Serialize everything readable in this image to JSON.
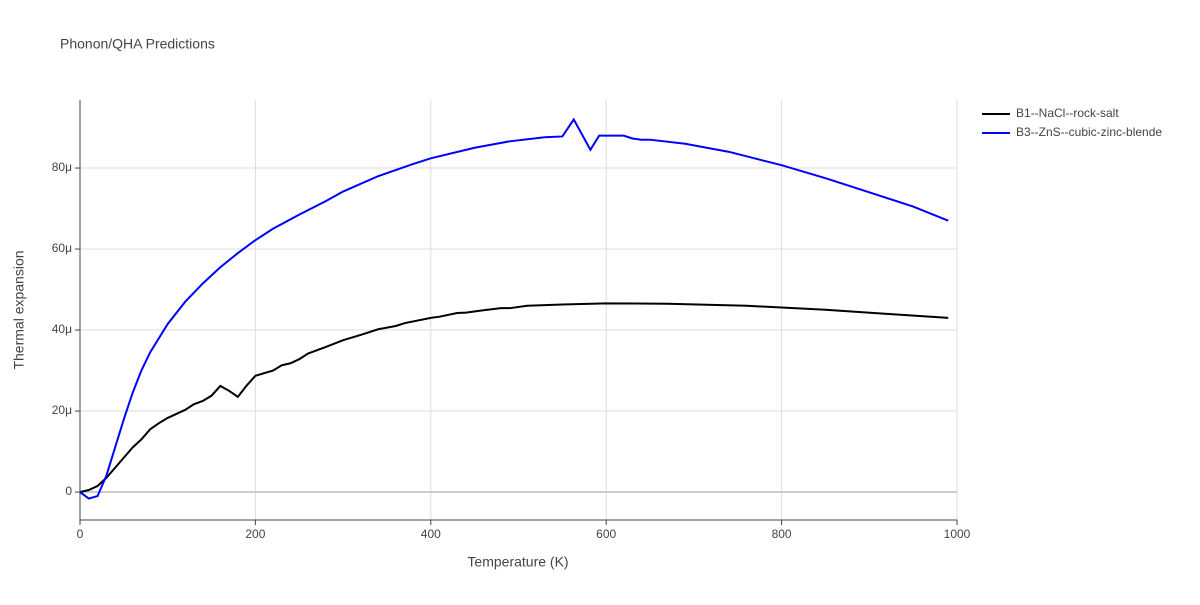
{
  "chart_data": {
    "type": "line",
    "title": "Phonon/QHA Predictions",
    "x_label": "Temperature (K)",
    "y_label": "Thermal expansion",
    "xlim": [
      0,
      1000
    ],
    "ylim": [
      -6.9e-06,
      9.68e-05
    ],
    "xticks": [
      0,
      200,
      400,
      600,
      800,
      1000
    ],
    "yticks": [
      0,
      {
        "value": 2e-05,
        "label": "20μ"
      },
      {
        "value": 4e-05,
        "label": "40μ"
      },
      {
        "value": 6e-05,
        "label": "60μ"
      },
      {
        "value": 8e-05,
        "label": "80μ"
      }
    ],
    "grid": true,
    "legend": "right",
    "series": [
      {
        "name": "B1--NaCl--rock-salt",
        "color": "#000000",
        "x": [
          0,
          10,
          20,
          30,
          40,
          50,
          60,
          70,
          80,
          90,
          100,
          120,
          130,
          140,
          150,
          160,
          170,
          180,
          190,
          200,
          220,
          230,
          240,
          250,
          260,
          280,
          300,
          320,
          340,
          360,
          370,
          400,
          410,
          430,
          440,
          460,
          480,
          490,
          510,
          550,
          600,
          670,
          760,
          850,
          920,
          990
        ],
        "values": [
          0,
          5e-07,
          1.5e-06,
          3.5e-06,
          6e-06,
          8.5e-06,
          1.1e-05,
          1.3e-05,
          1.55e-05,
          1.7e-05,
          1.83e-05,
          2.03e-05,
          2.17e-05,
          2.25e-05,
          2.38e-05,
          2.62e-05,
          2.5e-05,
          2.35e-05,
          2.63e-05,
          2.87e-05,
          3e-05,
          3.13e-05,
          3.18e-05,
          3.28e-05,
          3.42e-05,
          3.58e-05,
          3.75e-05,
          3.88e-05,
          4.02e-05,
          4.1e-05,
          4.17e-05,
          4.3e-05,
          4.33e-05,
          4.42e-05,
          4.43e-05,
          4.49e-05,
          4.54e-05,
          4.54e-05,
          4.6e-05,
          4.63e-05,
          4.66e-05,
          4.65e-05,
          4.6e-05,
          4.5e-05,
          4.4e-05,
          4.3e-05
        ]
      },
      {
        "name": "B3--ZnS--cubic-zinc-blende",
        "color": "#0000ff",
        "x": [
          0,
          10,
          20,
          30,
          40,
          50,
          60,
          70,
          80,
          100,
          120,
          140,
          160,
          180,
          200,
          220,
          250,
          280,
          300,
          340,
          380,
          400,
          450,
          490,
          530,
          550,
          563,
          582,
          592,
          620,
          630,
          640,
          650,
          690,
          740,
          800,
          850,
          900,
          950,
          990
        ],
        "values": [
          0,
          -1.6e-06,
          -1e-06,
          4e-06,
          1.1e-05,
          1.8e-05,
          2.45e-05,
          3e-05,
          3.45e-05,
          4.15e-05,
          4.7e-05,
          5.15e-05,
          5.55e-05,
          5.9e-05,
          6.22e-05,
          6.5e-05,
          6.85e-05,
          7.18e-05,
          7.42e-05,
          7.8e-05,
          8.1e-05,
          8.24e-05,
          8.5e-05,
          8.66e-05,
          8.76e-05,
          8.78e-05,
          9.2e-05,
          8.45e-05,
          8.8e-05,
          8.8e-05,
          8.73e-05,
          8.7e-05,
          8.7e-05,
          8.6e-05,
          8.4e-05,
          8.07e-05,
          7.75e-05,
          7.4e-05,
          7.05e-05,
          6.7e-05
        ]
      }
    ]
  }
}
